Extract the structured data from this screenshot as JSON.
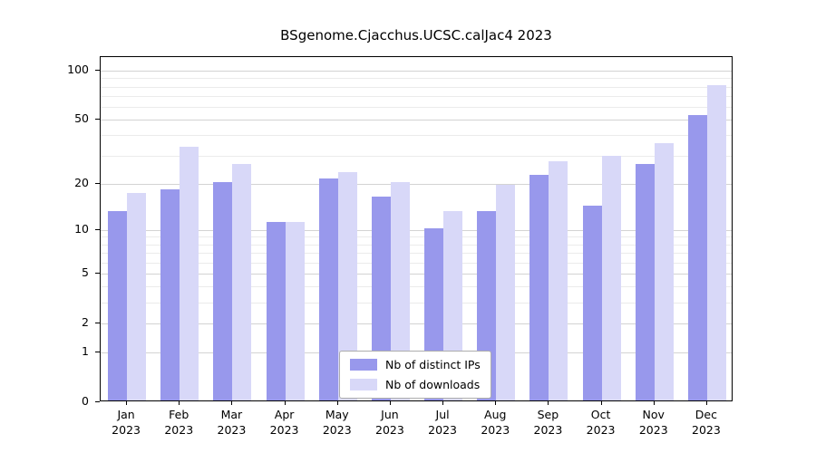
{
  "chart_data": {
    "type": "bar",
    "title": "BSgenome.Cjacchus.UCSC.calJac4 2023",
    "categories": [
      "Jan",
      "Feb",
      "Mar",
      "Apr",
      "May",
      "Jun",
      "Jul",
      "Aug",
      "Sep",
      "Oct",
      "Nov",
      "Dec"
    ],
    "year_label": "2023",
    "series": [
      {
        "name": "Nb of distinct IPs",
        "color": "#9898ec",
        "values": [
          13,
          18,
          20,
          11,
          21,
          16,
          10,
          13,
          22,
          14,
          26,
          52
        ]
      },
      {
        "name": "Nb of downloads",
        "color": "#d8d8f8",
        "values": [
          17,
          33,
          26,
          11,
          23,
          20,
          13,
          19,
          27,
          29,
          35,
          80
        ]
      }
    ],
    "y_ticks": [
      0,
      1,
      2,
      5,
      10,
      20,
      50,
      100
    ],
    "minor_gridlines": [
      3,
      4,
      6,
      7,
      8,
      9,
      30,
      40,
      60,
      70,
      80,
      90
    ],
    "scale": "log10(value+1)",
    "ylim": [
      0,
      100
    ],
    "grid": true,
    "legend_position": "bottom-center"
  },
  "colors": {
    "axis": "#000000",
    "major_grid": "#d3d3d3",
    "minor_grid": "#ebebeb",
    "background": "#ffffff"
  }
}
